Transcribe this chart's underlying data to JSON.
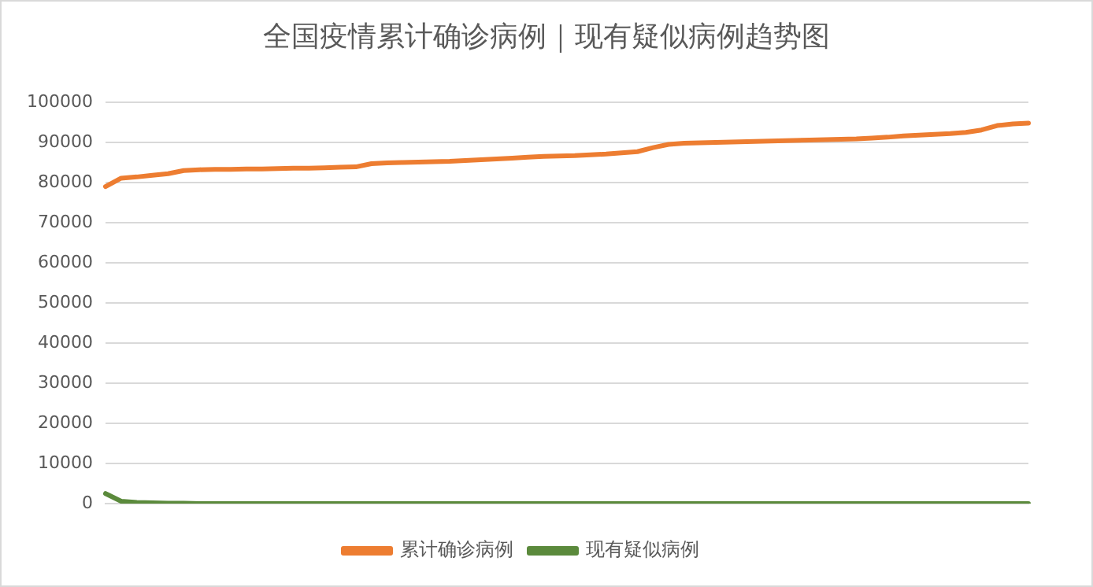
{
  "chart_data": {
    "type": "line",
    "title": "全国疫情累计确诊病例｜现有疑似病例趋势图",
    "categories": [
      null,
      null,
      null,
      null,
      null,
      null,
      null,
      null,
      null,
      null,
      null,
      null,
      null,
      null,
      null,
      null,
      null,
      null,
      null,
      null,
      null,
      null,
      null,
      null,
      null,
      null,
      null,
      null,
      null,
      null,
      null,
      null,
      null,
      null,
      null,
      null,
      null,
      null,
      null,
      null,
      null,
      null,
      null,
      null,
      null,
      null,
      null,
      null,
      null,
      null,
      null,
      null,
      null,
      null,
      null,
      null,
      null,
      null,
      null,
      null
    ],
    "series": [
      {
        "name": "累计确诊病例",
        "color": "#ed7d31",
        "values": [
          79000,
          81100,
          81400,
          81800,
          82200,
          83000,
          83200,
          83300,
          83300,
          83400,
          83400,
          83500,
          83600,
          83600,
          83700,
          83800,
          83900,
          84700,
          84900,
          85000,
          85100,
          85200,
          85300,
          85500,
          85700,
          85900,
          86100,
          86300,
          86500,
          86600,
          86700,
          86900,
          87100,
          87400,
          87700,
          88700,
          89500,
          89800,
          89900,
          90000,
          90100,
          90200,
          90300,
          90400,
          90500,
          90600,
          90700,
          90800,
          90900,
          91100,
          91300,
          91600,
          91800,
          92000,
          92200,
          92500,
          93100,
          94200,
          94600,
          94800
        ]
      },
      {
        "name": "现有疑似病例",
        "color": "#5b8a3c",
        "values": [
          2500,
          600,
          300,
          200,
          100,
          100,
          0,
          0,
          0,
          0,
          0,
          0,
          0,
          0,
          0,
          0,
          0,
          0,
          0,
          0,
          0,
          0,
          0,
          0,
          0,
          0,
          0,
          0,
          0,
          0,
          0,
          0,
          0,
          0,
          0,
          0,
          0,
          0,
          0,
          0,
          0,
          0,
          0,
          0,
          0,
          0,
          0,
          0,
          0,
          0,
          0,
          0,
          0,
          0,
          0,
          0,
          0,
          0,
          0,
          0
        ]
      }
    ],
    "ylim": [
      0,
      100000
    ],
    "yticks": [
      0,
      10000,
      20000,
      30000,
      40000,
      50000,
      60000,
      70000,
      80000,
      90000,
      100000
    ],
    "grid": "y",
    "legend": "bottom",
    "marker": "none",
    "line_style": "solid"
  }
}
